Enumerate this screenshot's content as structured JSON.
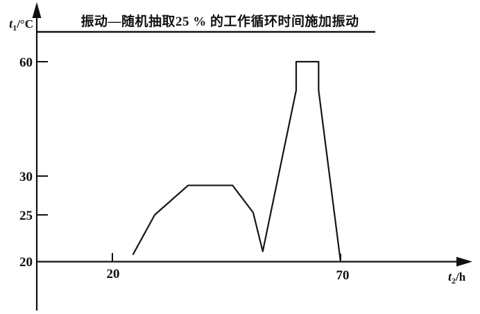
{
  "figure": {
    "title": "振动—随机抽取25 % 的工作循环时间施加振动",
    "y_axis_label": {
      "sym": "t",
      "sub": "1",
      "unit": "/°C"
    },
    "x_axis_label": {
      "sym": "t",
      "sub": "2",
      "unit": "/h"
    },
    "y_tick_labels": [
      "60",
      "30",
      "25",
      "20"
    ],
    "x_tick_labels": [
      "20",
      "70"
    ]
  },
  "chart_data": {
    "type": "line",
    "title": "振动—随机抽取25 % 的工作循环时间施加振动",
    "xlabel": "t2/h",
    "ylabel": "t1/°C",
    "x_ticks": [
      20,
      70
    ],
    "y_ticks": [
      20,
      25,
      30,
      60
    ],
    "xlim": [
      0,
      78
    ],
    "ylim": [
      20,
      65
    ],
    "grid": false,
    "legend": null,
    "axis_note": "schematic axis, tick spacing non-linear; vibration applied for 25% of cycle (horizontal line under title spans plot width)",
    "series": [
      {
        "name": "temperature-cycle-profile",
        "points": [
          [
            24.7,
            20.8
          ],
          [
            29.4,
            25.0
          ],
          [
            36.7,
            28.8
          ],
          [
            46.4,
            28.8
          ],
          [
            50.9,
            25.3
          ],
          [
            53.0,
            21.1
          ],
          [
            60.3,
            52.5
          ],
          [
            60.3,
            60.0
          ],
          [
            65.2,
            60.0
          ],
          [
            65.2,
            52.5
          ],
          [
            70.0,
            20.0
          ]
        ]
      }
    ]
  }
}
